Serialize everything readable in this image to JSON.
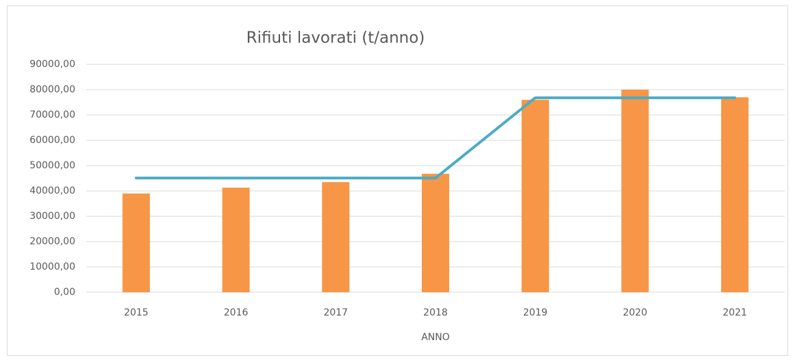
{
  "chart_data": {
    "type": "bar",
    "title": "Rifiuti lavorati (t/anno)",
    "x_label": "ANNO",
    "categories": [
      "2015",
      "2016",
      "2017",
      "2018",
      "2019",
      "2020",
      "2021"
    ],
    "series": [
      {
        "type": "bar",
        "color": "#f79646",
        "values": [
          39000,
          41300,
          43500,
          46800,
          76000,
          80000,
          77000
        ]
      },
      {
        "type": "line",
        "color": "#4bacc6",
        "values": [
          45100,
          45100,
          45100,
          45100,
          76800,
          76800,
          76800
        ]
      }
    ],
    "ylim": [
      0,
      90000
    ],
    "yticks": [
      {
        "value": 0,
        "label": "0,00"
      },
      {
        "value": 10000,
        "label": "10000,00"
      },
      {
        "value": 20000,
        "label": "20000,00"
      },
      {
        "value": 30000,
        "label": "30000,00"
      },
      {
        "value": 40000,
        "label": "40000,00"
      },
      {
        "value": 50000,
        "label": "50000,00"
      },
      {
        "value": 60000,
        "label": "60000,00"
      },
      {
        "value": 70000,
        "label": "70000,00"
      },
      {
        "value": 80000,
        "label": "80000,00"
      },
      {
        "value": 90000,
        "label": "90000,00"
      }
    ],
    "grid": true
  }
}
